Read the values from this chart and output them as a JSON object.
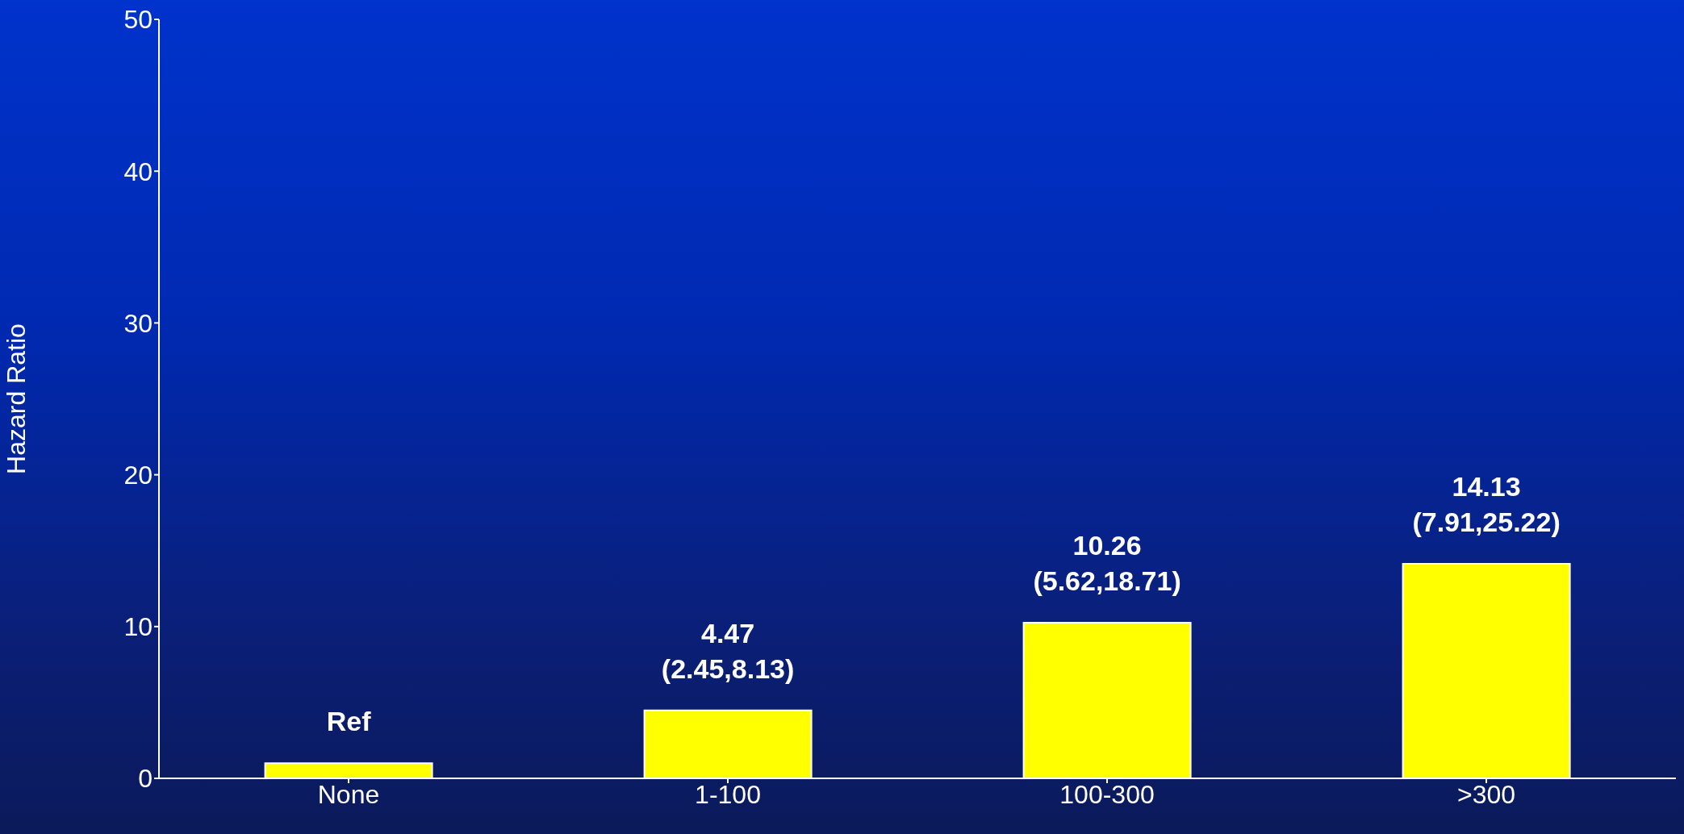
{
  "chart_data": {
    "type": "bar",
    "ylabel": "Hazard Ratio",
    "categories": [
      "None",
      "1-100",
      "100-300",
      ">300"
    ],
    "values": [
      1,
      4.47,
      10.26,
      14.13
    ],
    "color": "#ffff00",
    "value_labels": [
      "Ref",
      "4.47\n(2.45,8.13)",
      "10.26\n(5.62,18.71)",
      "14.13\n(7.91,25.22)"
    ],
    "ylim": [
      0,
      50
    ],
    "yticks": [
      0,
      10,
      20,
      30,
      40,
      50
    ],
    "grid": false,
    "legend": false
  }
}
